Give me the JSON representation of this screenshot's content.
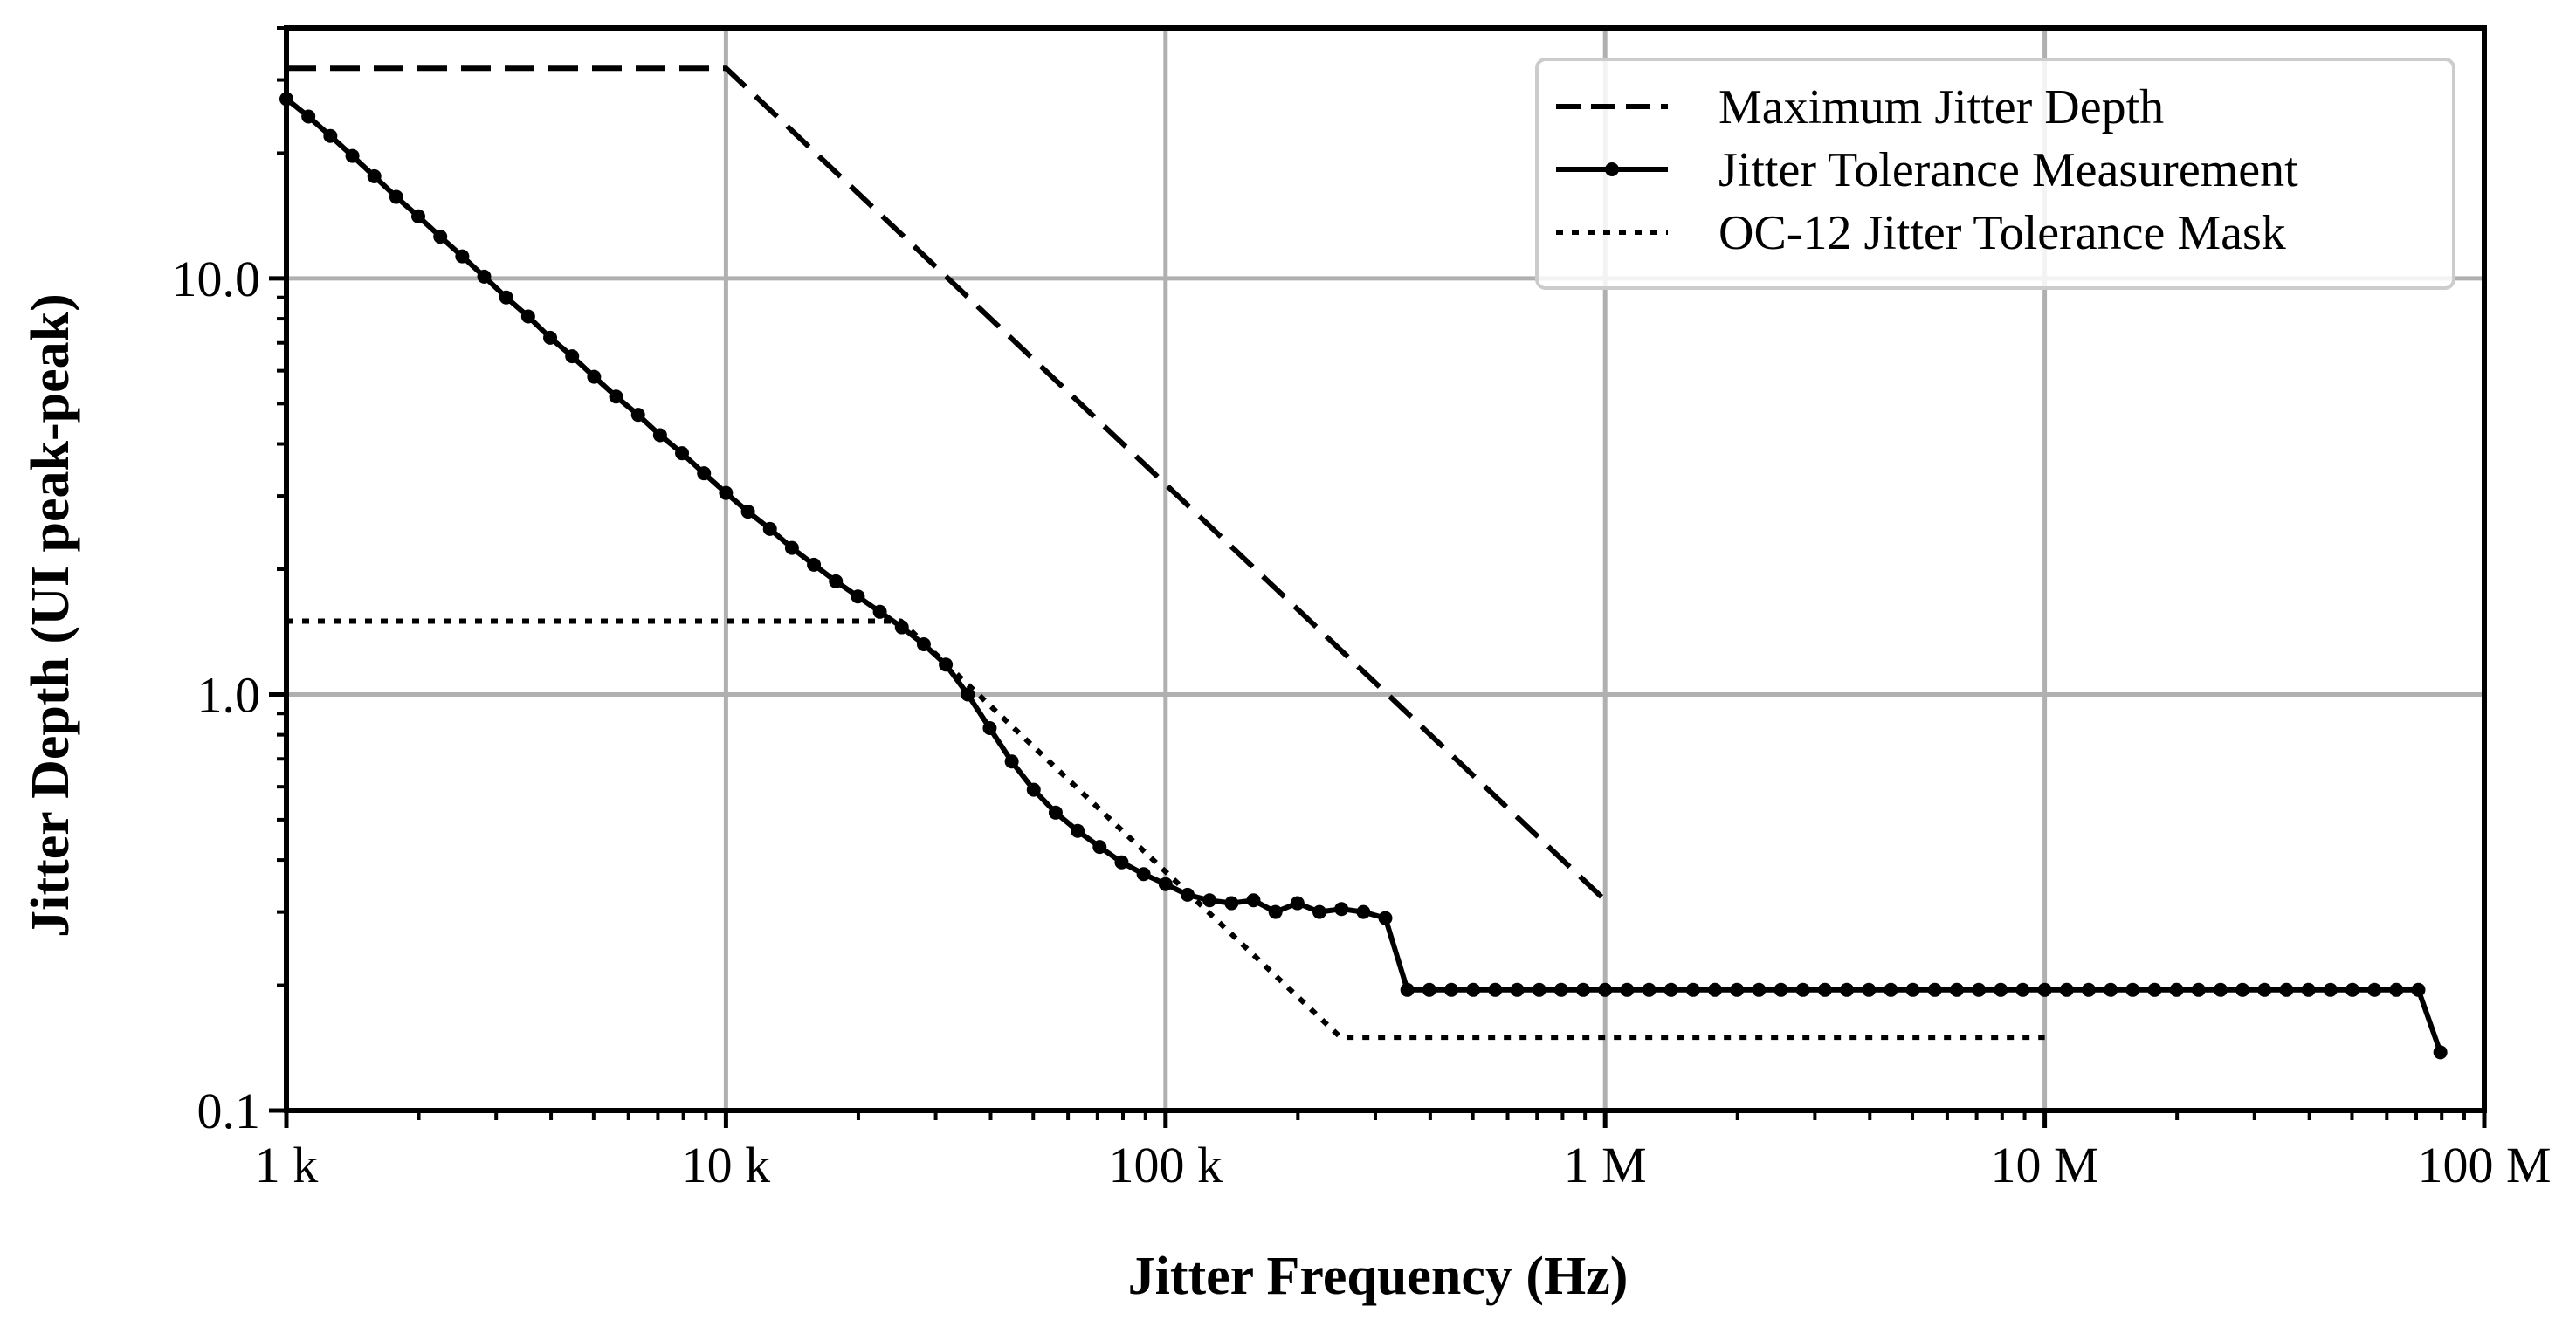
{
  "chart_data": {
    "type": "line",
    "xscale": "log",
    "yscale": "log",
    "xlabel": "Jitter Frequency (Hz)",
    "ylabel": "Jitter Depth (UI peak-peak)",
    "xlim": [
      1000,
      100000000
    ],
    "ylim": [
      0.1,
      40
    ],
    "grid": true,
    "legend_position": "top-right",
    "x_ticks": [
      {
        "value": 1000,
        "label": "1 k"
      },
      {
        "value": 10000,
        "label": "10 k"
      },
      {
        "value": 100000,
        "label": "100 k"
      },
      {
        "value": 1000000,
        "label": "1 M"
      },
      {
        "value": 10000000,
        "label": "10 M"
      },
      {
        "value": 100000000,
        "label": "100 M"
      }
    ],
    "y_ticks": [
      {
        "value": 0.1,
        "label": "0.1"
      },
      {
        "value": 1,
        "label": "1.0"
      },
      {
        "value": 10,
        "label": "10.0"
      }
    ],
    "series": [
      {
        "name": "Maximum Jitter Depth",
        "style": "dashed",
        "color": "#000000",
        "x": [
          1000,
          10000,
          1000000
        ],
        "y": [
          32,
          32,
          0.32
        ]
      },
      {
        "name": "Jitter Tolerance Measurement",
        "style": "solid-marker",
        "color": "#000000",
        "x": [
          1000,
          1122,
          1259,
          1413,
          1585,
          1778,
          1995,
          2239,
          2512,
          2818,
          3162,
          3548,
          3981,
          4467,
          5012,
          5623,
          6310,
          7079,
          7943,
          8913,
          10000,
          11220,
          12589,
          14125,
          15849,
          17783,
          19953,
          22387,
          25119,
          28184,
          31623,
          35481,
          39811,
          44668,
          50119,
          56234,
          63096,
          70795,
          79433,
          89125,
          100000,
          112202,
          125893,
          141254,
          158489,
          177828,
          199526,
          223872,
          251189,
          281838,
          316228,
          354813,
          398107,
          446684,
          501187,
          562341,
          630957,
          707946,
          794328,
          891251,
          1000000,
          1122018,
          1258925,
          1412538,
          1584893,
          1778279,
          1995262,
          2238721,
          2511886,
          2818383,
          3162278,
          3548134,
          3981072,
          4466836,
          5011872,
          5623413,
          6309573,
          7079458,
          7943282,
          8912509,
          10000000,
          11220185,
          12589254,
          14125375,
          15848932,
          17782794,
          19952623,
          22387211,
          25118864,
          28183829,
          31622777,
          35481339,
          39810717,
          44668359,
          50118723,
          56234133,
          63095734,
          70794578,
          79432823
        ],
        "y": [
          27,
          24.5,
          22,
          19.7,
          17.6,
          15.7,
          14.1,
          12.6,
          11.3,
          10.1,
          9.0,
          8.1,
          7.2,
          6.5,
          5.8,
          5.2,
          4.7,
          4.2,
          3.8,
          3.4,
          3.05,
          2.75,
          2.5,
          2.25,
          2.05,
          1.87,
          1.72,
          1.58,
          1.45,
          1.32,
          1.18,
          1.0,
          0.83,
          0.69,
          0.59,
          0.52,
          0.47,
          0.43,
          0.395,
          0.37,
          0.35,
          0.33,
          0.32,
          0.315,
          0.32,
          0.3,
          0.315,
          0.3,
          0.305,
          0.3,
          0.29,
          0.195,
          0.195,
          0.195,
          0.195,
          0.195,
          0.195,
          0.195,
          0.195,
          0.195,
          0.195,
          0.195,
          0.195,
          0.195,
          0.195,
          0.195,
          0.195,
          0.195,
          0.195,
          0.195,
          0.195,
          0.195,
          0.195,
          0.195,
          0.195,
          0.195,
          0.195,
          0.195,
          0.195,
          0.195,
          0.195,
          0.195,
          0.195,
          0.195,
          0.195,
          0.195,
          0.195,
          0.195,
          0.195,
          0.195,
          0.195,
          0.195,
          0.195,
          0.195,
          0.195,
          0.195,
          0.195,
          0.195,
          0.138
        ]
      },
      {
        "name": "OC-12 Jitter Tolerance Mask",
        "style": "dotted",
        "color": "#000000",
        "x": [
          1000,
          25000,
          250000,
          10000000
        ],
        "y": [
          1.5,
          1.5,
          0.15,
          0.15
        ]
      }
    ]
  }
}
